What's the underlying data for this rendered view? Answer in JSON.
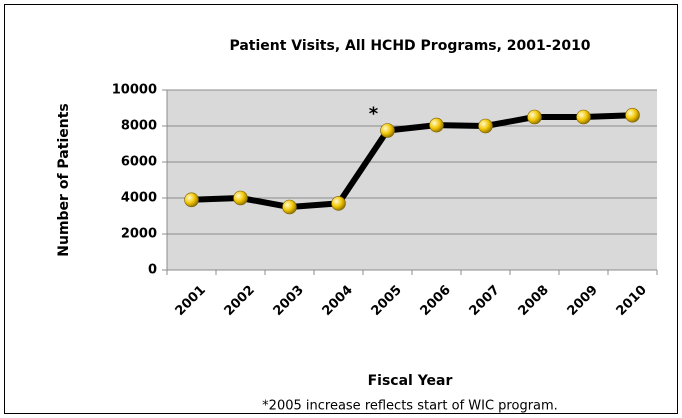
{
  "chart_data": {
    "type": "line",
    "title": "Patient Visits, All HCHD Programs, 2001-2010",
    "x_label": "Fiscal Year",
    "y_label": "Number of Patients",
    "annotation": "*",
    "footnote": "*2005 increase reflects start of WIC program.",
    "categories": [
      "2001",
      "2002",
      "2003",
      "2004",
      "2005",
      "2006",
      "2007",
      "2008",
      "2009",
      "2010"
    ],
    "series": [
      {
        "name": "Patient Visits",
        "color": "#000000",
        "values": [
          3900,
          4000,
          3500,
          3700,
          7750,
          8050,
          8000,
          8500,
          8500,
          8600
        ]
      }
    ],
    "marker_color": "#f2c500",
    "ylim": [
      0,
      10000
    ],
    "yticks": [
      0,
      2000,
      4000,
      6000,
      8000,
      10000
    ],
    "grid": true,
    "plot_background": "#d9d9d9"
  }
}
